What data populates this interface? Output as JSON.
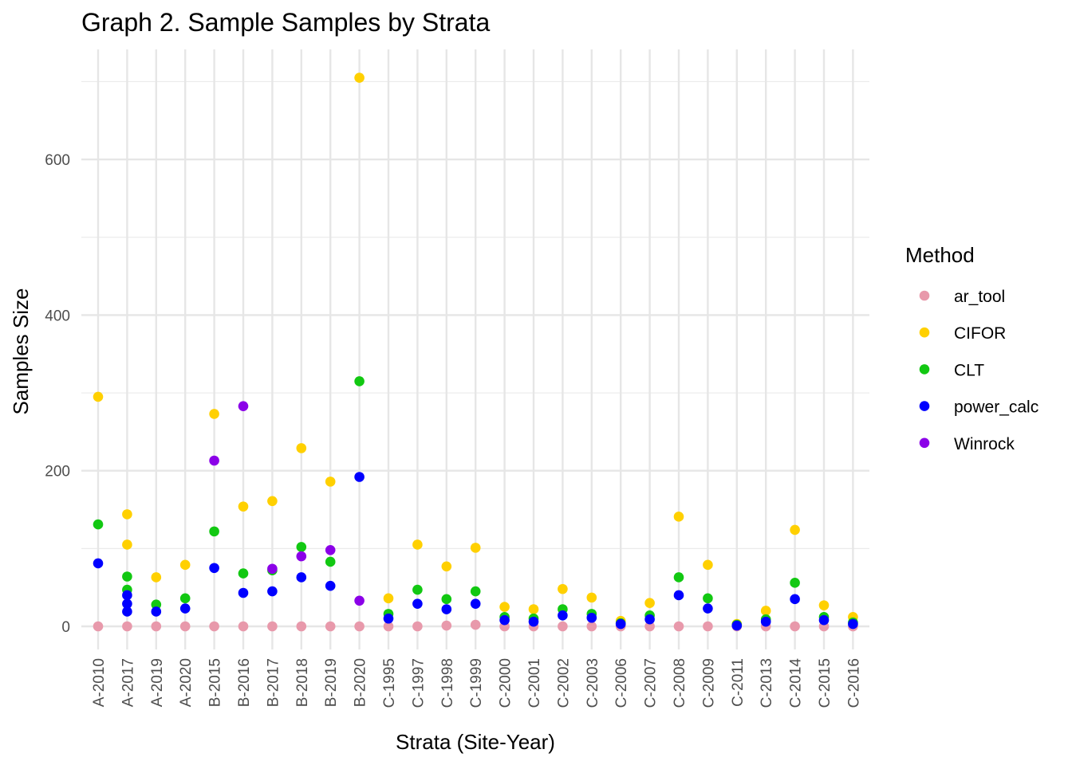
{
  "chart_data": {
    "type": "scatter",
    "title": "Graph 2. Sample Samples by Strata",
    "xlabel": "Strata (Site-Year)",
    "ylabel": "Samples Size",
    "ylim": [
      -30,
      730
    ],
    "yticks": [
      0,
      200,
      400,
      600
    ],
    "grid": true,
    "legend": {
      "title": "Method",
      "position": "right"
    },
    "categories": [
      "A-2010",
      "A-2017",
      "A-2019",
      "A-2020",
      "B-2015",
      "B-2016",
      "B-2017",
      "B-2018",
      "B-2019",
      "B-2020",
      "C-1995",
      "C-1997",
      "C-1998",
      "C-1999",
      "C-2000",
      "C-2001",
      "C-2002",
      "C-2003",
      "C-2006",
      "C-2007",
      "C-2008",
      "C-2009",
      "C-2011",
      "C-2013",
      "C-2014",
      "C-2015",
      "C-2016"
    ],
    "series": [
      {
        "name": "ar_tool",
        "color": "#e899ab",
        "points": [
          [
            "A-2010",
            0
          ],
          [
            "A-2017",
            0
          ],
          [
            "A-2019",
            0
          ],
          [
            "A-2020",
            0
          ],
          [
            "B-2015",
            0
          ],
          [
            "B-2016",
            0
          ],
          [
            "B-2017",
            0
          ],
          [
            "B-2018",
            0
          ],
          [
            "B-2019",
            0
          ],
          [
            "B-2020",
            0
          ],
          [
            "C-1995",
            0
          ],
          [
            "C-1997",
            0
          ],
          [
            "C-1998",
            1
          ],
          [
            "C-1999",
            2
          ],
          [
            "C-2000",
            0
          ],
          [
            "C-2001",
            0
          ],
          [
            "C-2002",
            0
          ],
          [
            "C-2003",
            0
          ],
          [
            "C-2006",
            0
          ],
          [
            "C-2007",
            0
          ],
          [
            "C-2008",
            0
          ],
          [
            "C-2009",
            0
          ],
          [
            "C-2011",
            0
          ],
          [
            "C-2013",
            0
          ],
          [
            "C-2014",
            0
          ],
          [
            "C-2015",
            0
          ],
          [
            "C-2016",
            0
          ]
        ]
      },
      {
        "name": "CIFOR",
        "color": "#ffd000",
        "points": [
          [
            "A-2010",
            295
          ],
          [
            "A-2017",
            144
          ],
          [
            "A-2017",
            105
          ],
          [
            "A-2019",
            63
          ],
          [
            "A-2020",
            79
          ],
          [
            "B-2015",
            273
          ],
          [
            "B-2016",
            154
          ],
          [
            "B-2017",
            161
          ],
          [
            "B-2018",
            229
          ],
          [
            "B-2019",
            186
          ],
          [
            "B-2020",
            705
          ],
          [
            "C-1995",
            36
          ],
          [
            "C-1997",
            105
          ],
          [
            "C-1998",
            77
          ],
          [
            "C-1999",
            101
          ],
          [
            "C-2000",
            25
          ],
          [
            "C-2001",
            22
          ],
          [
            "C-2002",
            48
          ],
          [
            "C-2003",
            37
          ],
          [
            "C-2006",
            7
          ],
          [
            "C-2007",
            30
          ],
          [
            "C-2008",
            141
          ],
          [
            "C-2009",
            79
          ],
          [
            "C-2011",
            3
          ],
          [
            "C-2013",
            20
          ],
          [
            "C-2014",
            124
          ],
          [
            "C-2015",
            27
          ],
          [
            "C-2016",
            12
          ]
        ]
      },
      {
        "name": "CLT",
        "color": "#12c812",
        "points": [
          [
            "A-2010",
            131
          ],
          [
            "A-2017",
            64
          ],
          [
            "A-2017",
            47
          ],
          [
            "A-2019",
            28
          ],
          [
            "A-2020",
            36
          ],
          [
            "B-2015",
            122
          ],
          [
            "B-2016",
            68
          ],
          [
            "B-2017",
            72
          ],
          [
            "B-2018",
            102
          ],
          [
            "B-2019",
            83
          ],
          [
            "B-2020",
            315
          ],
          [
            "C-1995",
            16
          ],
          [
            "C-1997",
            47
          ],
          [
            "C-1998",
            35
          ],
          [
            "C-1999",
            45
          ],
          [
            "C-2000",
            12
          ],
          [
            "C-2001",
            10
          ],
          [
            "C-2002",
            22
          ],
          [
            "C-2003",
            16
          ],
          [
            "C-2006",
            4
          ],
          [
            "C-2007",
            14
          ],
          [
            "C-2008",
            63
          ],
          [
            "C-2009",
            36
          ],
          [
            "C-2011",
            2
          ],
          [
            "C-2013",
            9
          ],
          [
            "C-2014",
            56
          ],
          [
            "C-2015",
            12
          ],
          [
            "C-2016",
            5
          ]
        ]
      },
      {
        "name": "power_calc",
        "color": "#0000ff",
        "points": [
          [
            "A-2010",
            81
          ],
          [
            "A-2017",
            40
          ],
          [
            "A-2017",
            29
          ],
          [
            "A-2017",
            19
          ],
          [
            "A-2019",
            19
          ],
          [
            "A-2020",
            23
          ],
          [
            "B-2015",
            75
          ],
          [
            "B-2016",
            43
          ],
          [
            "B-2017",
            45
          ],
          [
            "B-2018",
            63
          ],
          [
            "B-2019",
            52
          ],
          [
            "B-2020",
            192
          ],
          [
            "C-1995",
            10
          ],
          [
            "C-1997",
            29
          ],
          [
            "C-1998",
            22
          ],
          [
            "C-1999",
            29
          ],
          [
            "C-2000",
            8
          ],
          [
            "C-2001",
            6
          ],
          [
            "C-2002",
            14
          ],
          [
            "C-2003",
            11
          ],
          [
            "C-2006",
            3
          ],
          [
            "C-2007",
            9
          ],
          [
            "C-2008",
            40
          ],
          [
            "C-2009",
            23
          ],
          [
            "C-2011",
            1
          ],
          [
            "C-2013",
            6
          ],
          [
            "C-2014",
            35
          ],
          [
            "C-2015",
            8
          ],
          [
            "C-2016",
            3
          ]
        ]
      },
      {
        "name": "Winrock",
        "color": "#8b00e8",
        "points": [
          [
            "B-2015",
            213
          ],
          [
            "B-2016",
            283
          ],
          [
            "B-2017",
            74
          ],
          [
            "B-2018",
            90
          ],
          [
            "B-2019",
            98
          ],
          [
            "B-2020",
            33
          ]
        ]
      }
    ]
  }
}
